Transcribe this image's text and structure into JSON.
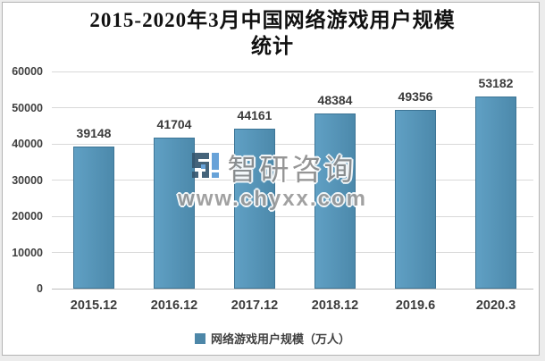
{
  "title": {
    "line1": "2015-2020年3月中国网络游戏用户规模",
    "line2": "统计"
  },
  "chart_data": {
    "type": "bar",
    "title": "2015-2020年3月中国网络游戏用户规模统计",
    "categories": [
      "2015.12",
      "2016.12",
      "2017.12",
      "2018.12",
      "2019.6",
      "2020.3"
    ],
    "values": [
      39148,
      41704,
      44161,
      48384,
      49356,
      53182
    ],
    "series_name": "网络游戏用户规模（万人）",
    "xlabel": "",
    "ylabel": "",
    "ylim": [
      0,
      60000
    ],
    "y_ticks": [
      0,
      10000,
      20000,
      30000,
      40000,
      50000,
      60000
    ],
    "grid": true,
    "legend_position": "bottom"
  },
  "legend": {
    "label": "网络游戏用户规模（万人）"
  },
  "watermark": {
    "brand": "智研咨询",
    "url": "www.chyxx.com",
    "logo_icon": "zhiyan-logo-icon"
  },
  "colors": {
    "bar_fill_left": "#60a0c4",
    "bar_fill_right": "#4c89ab",
    "bar_border": "#3d7596",
    "gridline": "#d9d9d9",
    "baseline": "#bdbdbd",
    "label_text": "#3b3b3b",
    "title_text": "#111111",
    "legend_swatch": "#4d87a8",
    "watermark_gray": "#8d8d8d",
    "logo_dark": "#35566f",
    "logo_light": "#5b9bd5"
  }
}
